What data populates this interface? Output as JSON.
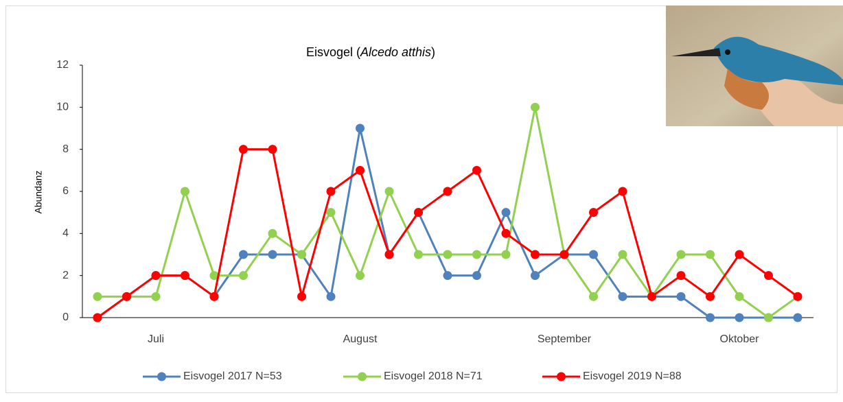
{
  "chart_data": {
    "type": "line",
    "title": [
      "Eisvogel (",
      "Alcedo atthis",
      ")"
    ],
    "y_label": "Abundanz",
    "categories": [
      null,
      null,
      "Juli",
      null,
      null,
      null,
      null,
      null,
      null,
      "August",
      null,
      null,
      null,
      null,
      null,
      null,
      "September",
      null,
      null,
      null,
      null,
      null,
      "Oktober",
      null,
      null
    ],
    "series": [
      {
        "name": "Eisvogel 2017 N=53",
        "color": "#4f81bd",
        "values": [
          0,
          1,
          2,
          2,
          1,
          3,
          3,
          3,
          1,
          9,
          3,
          5,
          2,
          2,
          5,
          2,
          3,
          3,
          1,
          1,
          1,
          0,
          0,
          0,
          0
        ]
      },
      {
        "name": "Eisvogel 2018 N=71",
        "color": "#92d050",
        "values": [
          1,
          1,
          1,
          6,
          2,
          2,
          4,
          3,
          5,
          2,
          6,
          3,
          3,
          3,
          3,
          10,
          3,
          1,
          3,
          1,
          3,
          3,
          1,
          0,
          1
        ]
      },
      {
        "name": "Eisvogel 2019 N=88",
        "color": "#ff0000",
        "values": [
          0,
          1,
          2,
          2,
          1,
          8,
          8,
          1,
          6,
          7,
          3,
          5,
          6,
          7,
          4,
          3,
          3,
          5,
          6,
          1,
          2,
          1,
          3,
          2,
          1
        ]
      }
    ],
    "ylim": [
      0,
      12
    ],
    "yticks": [
      0,
      2,
      4,
      6,
      8,
      10,
      12
    ],
    "grid": false,
    "legend": "bottom"
  }
}
